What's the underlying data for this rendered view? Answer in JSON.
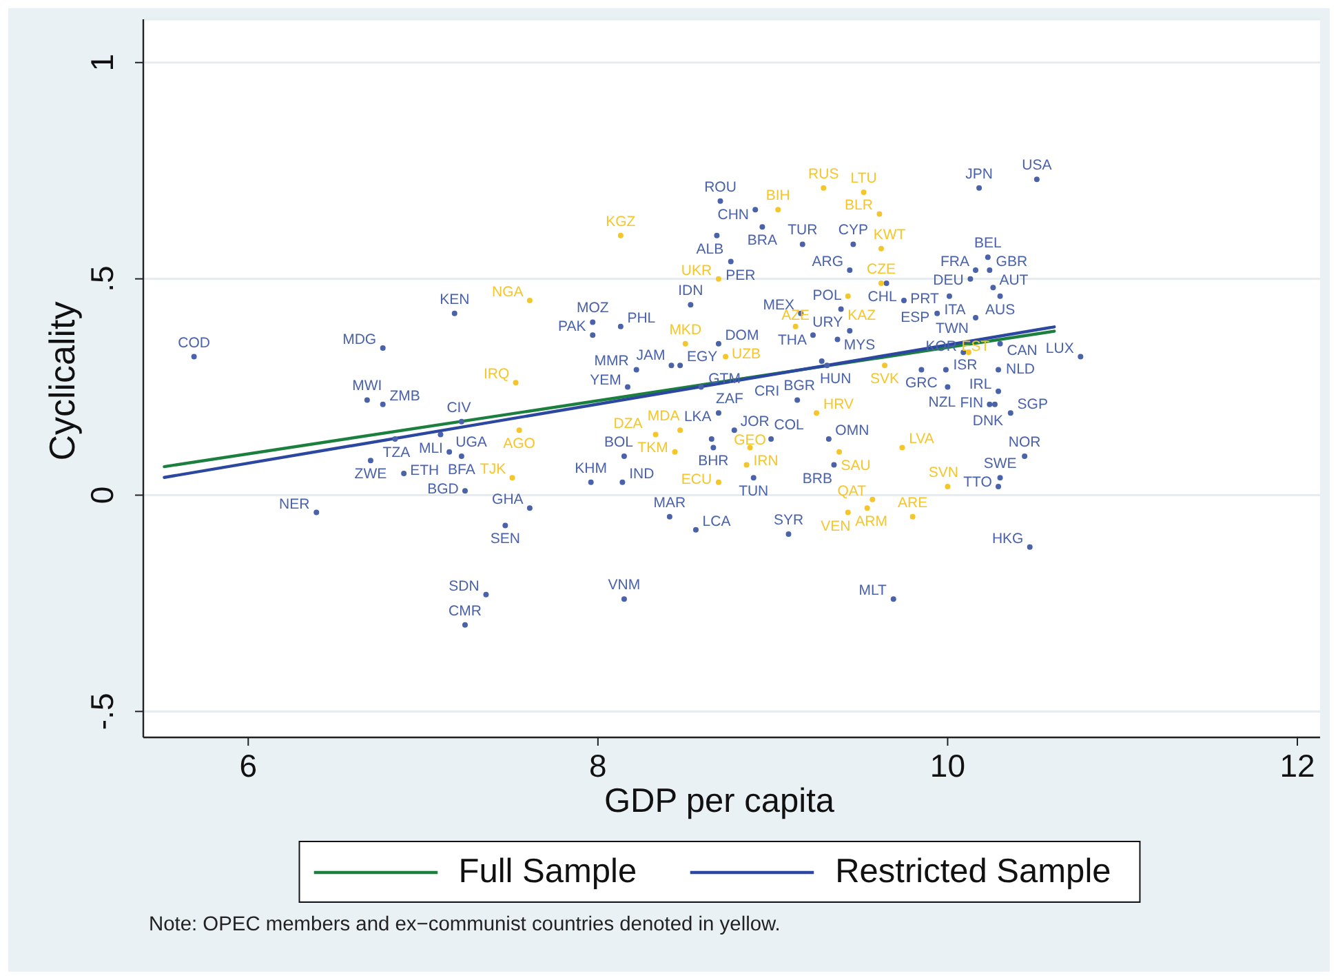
{
  "chart_data": {
    "type": "scatter",
    "xlabel": "GDP per capita",
    "ylabel": "Cyclicality",
    "xlim": [
      5.4,
      12.13
    ],
    "ylim": [
      -0.56,
      1.1
    ],
    "xticks": [
      6,
      8,
      10,
      12
    ],
    "yticks": [
      {
        "value": -0.5,
        "label": "-.5"
      },
      0,
      {
        "value": 0.5,
        "label": ".5"
      },
      1
    ],
    "grid": "y",
    "marker": "circle",
    "legend": "bottom",
    "line_style": "solid",
    "annotations": [
      "Note: OPEC members and ex−communist countries denoted in yellow."
    ],
    "series": [
      {
        "type": "scatter",
        "color": "#4a62aa",
        "x": [
          5.69,
          6.77,
          7.18,
          6.68,
          6.77,
          7.22,
          6.84,
          7.1,
          7.15,
          7.22,
          6.7,
          6.89,
          7.24,
          6.39,
          7.61,
          7.47,
          7.36,
          7.24,
          7.97,
          7.97,
          8.13,
          8.53,
          8.22,
          8.42,
          8.47,
          8.17,
          8.59,
          8.69,
          8.7,
          8.9,
          8.68,
          8.94,
          8.76,
          9.17,
          9.46,
          9.44,
          9.65,
          9.75,
          9.16,
          9.39,
          9.44,
          9.23,
          9.37,
          9.28,
          9.31,
          9.85,
          9.99,
          10.0,
          9.94,
          10.01,
          10.16,
          10.09,
          10.3,
          10.29,
          10.29,
          10.24,
          10.27,
          10.36,
          10.44,
          10.3,
          10.29,
          10.47,
          10.51,
          10.18,
          10.23,
          10.16,
          10.24,
          10.13,
          10.26,
          10.3,
          9.14,
          8.69,
          8.78,
          8.65,
          8.66,
          8.99,
          9.32,
          9.35,
          8.15,
          7.96,
          8.14,
          8.89,
          8.41,
          8.56,
          9.09,
          8.15,
          9.69,
          10.76
        ],
        "values": [
          0.32,
          0.34,
          0.42,
          0.22,
          0.21,
          0.17,
          0.13,
          0.14,
          0.1,
          0.09,
          0.08,
          0.05,
          0.01,
          -0.04,
          -0.03,
          -0.07,
          -0.23,
          -0.3,
          0.4,
          0.37,
          0.39,
          0.44,
          0.29,
          0.3,
          0.3,
          0.25,
          0.25,
          0.35,
          0.68,
          0.66,
          0.6,
          0.62,
          0.54,
          0.58,
          0.58,
          0.52,
          0.49,
          0.45,
          0.42,
          0.43,
          0.38,
          0.37,
          0.36,
          0.31,
          0.3,
          0.29,
          0.29,
          0.25,
          0.42,
          0.46,
          0.41,
          0.33,
          0.35,
          0.29,
          0.24,
          0.21,
          0.21,
          0.19,
          0.09,
          0.04,
          0.02,
          -0.12,
          0.73,
          0.71,
          0.55,
          0.52,
          0.52,
          0.5,
          0.48,
          0.46,
          0.22,
          0.19,
          0.15,
          0.13,
          0.11,
          0.13,
          0.13,
          0.07,
          0.09,
          0.03,
          0.03,
          0.04,
          -0.05,
          -0.08,
          -0.09,
          -0.24,
          -0.24,
          0.32
        ],
        "value_labels": [
          "COD",
          "MDG",
          "KEN",
          "MWI",
          "ZMB",
          "CIV",
          "TZA",
          "MLI",
          "UGA",
          "BFA",
          "ZWE",
          "ETH",
          "BGD",
          "NER",
          "GHA",
          "SEN",
          "SDN",
          "CMR",
          "MOZ",
          "PAK",
          "PHL",
          "IDN",
          "MMR",
          "JAM",
          "EGY",
          "YEM",
          "GTM",
          "DOM",
          "ROU",
          "CHN",
          "ALB",
          "BRA",
          "PER",
          "TUR",
          "CYP",
          "ARG",
          "CHL",
          "PRT",
          "MEX",
          "POL",
          "URY",
          "THA",
          "MYS",
          "HUN",
          "BGR",
          "GRC",
          "ISR",
          "NZL",
          "ESP",
          "ITA",
          "TWN",
          "KOR",
          "CAN",
          "NLD",
          "IRL",
          "FIN",
          "DNK",
          "SGP",
          "NOR",
          "SWE",
          "TTO",
          "HKG",
          "USA",
          "JPN",
          "BEL",
          "FRA",
          "GBR",
          "DEU",
          "AUT",
          "AUS",
          "CRI",
          "ZAF",
          "JOR",
          "LKA",
          "BHR",
          "COL",
          "OMN",
          "BRB",
          "BOL",
          "KHM",
          "IND",
          "TUN",
          "MAR",
          "LCA",
          "SYR",
          "VNM",
          "MLT",
          "LUX"
        ]
      },
      {
        "type": "scatter",
        "color": "#f5c62c",
        "x": [
          7.61,
          8.13,
          7.53,
          7.55,
          7.51,
          9.29,
          9.52,
          9.03,
          9.61,
          9.62,
          8.69,
          9.43,
          9.62,
          9.13,
          8.5,
          8.73,
          9.64,
          9.25,
          8.33,
          8.47,
          8.44,
          8.87,
          8.85,
          8.69,
          9.38,
          9.74,
          10.0,
          9.57,
          9.54,
          9.43,
          9.8,
          10.12
        ],
        "values": [
          0.45,
          0.6,
          0.26,
          0.15,
          0.04,
          0.71,
          0.7,
          0.66,
          0.65,
          0.57,
          0.5,
          0.46,
          0.49,
          0.39,
          0.35,
          0.32,
          0.3,
          0.19,
          0.14,
          0.15,
          0.1,
          0.11,
          0.07,
          0.03,
          0.1,
          0.11,
          0.02,
          -0.01,
          -0.03,
          -0.04,
          -0.05,
          0.33
        ],
        "value_labels": [
          "NGA",
          "KGZ",
          "IRQ",
          "AGO",
          "TJK",
          "RUS",
          "LTU",
          "BIH",
          "BLR",
          "KWT",
          "UKR",
          "KAZ",
          "CZE",
          "AZE",
          "MKD",
          "UZB",
          "SVK",
          "HRV",
          "DZA",
          "MDA",
          "TKM",
          "GEO",
          "IRN",
          "ECU",
          "SAU",
          "LVA",
          "SVN",
          "QAT",
          "ARM",
          "VEN",
          "ARE",
          "EST"
        ]
      },
      {
        "type": "line",
        "name": "Full Sample",
        "color": "#1b7f3e",
        "marker": "none",
        "x": [
          5.52,
          10.61
        ],
        "values": [
          0.066,
          0.379
        ]
      },
      {
        "type": "line",
        "name": "Restricted Sample",
        "color": "#2b47a0",
        "marker": "none",
        "x": [
          5.52,
          10.61
        ],
        "values": [
          0.041,
          0.389
        ]
      }
    ]
  }
}
